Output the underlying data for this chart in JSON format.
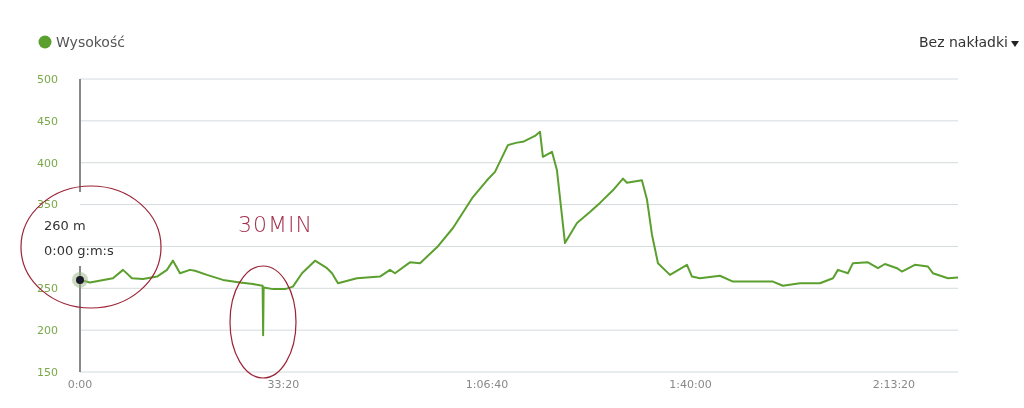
{
  "chart_data": {
    "type": "line",
    "series": [
      {
        "name": "Wysokość",
        "color": "#5ba02e",
        "x": [
          0,
          98,
          324,
          423,
          511,
          619,
          757,
          855,
          914,
          983,
          1081,
          1130,
          1248,
          1405,
          1572,
          1700,
          1795,
          1800,
          1805,
          1897,
          2015,
          2093,
          2182,
          2310,
          2428,
          2477,
          2536,
          2722,
          2948,
          3047,
          3096,
          3243,
          3342,
          3509,
          3666,
          3862,
          4000,
          4079,
          4206,
          4295,
          4354,
          4472,
          4521,
          4550,
          4639,
          4688,
          4767,
          4885,
          5012,
          5111,
          5238,
          5337,
          5376,
          5523,
          5573,
          5622,
          5681,
          5799,
          5966,
          6015,
          6093,
          6290,
          6418,
          6614,
          6811,
          6909,
          7076,
          7273,
          7401,
          7450,
          7548,
          7597,
          7745,
          7843,
          7912,
          8030,
          8078,
          8206,
          8334,
          8383,
          8531,
          8630
        ],
        "values": [
          260,
          257,
          262,
          272,
          262,
          261,
          264,
          272,
          283,
          268,
          272,
          271,
          266,
          260,
          257,
          255,
          253,
          194,
          251,
          249,
          249,
          252,
          268,
          283,
          274,
          268,
          256,
          262,
          264,
          272,
          268,
          281,
          280,
          299,
          322,
          359,
          379,
          389,
          421,
          424,
          425,
          432,
          437,
          407,
          413,
          391,
          304,
          328,
          341,
          352,
          367,
          381,
          376,
          379,
          356,
          314,
          280,
          266,
          278,
          264,
          262,
          265,
          258,
          258,
          258,
          253,
          256,
          256,
          262,
          272,
          268,
          280,
          281,
          274,
          279,
          274,
          270,
          278,
          276,
          268,
          262,
          263
        ]
      }
    ],
    "xlim": [
      0,
      8630
    ],
    "xticks": [
      {
        "value": 0,
        "label": "0:00"
      },
      {
        "value": 2000,
        "label": "33:20"
      },
      {
        "value": 4000,
        "label": "1:06:40"
      },
      {
        "value": 6000,
        "label": "1:40:00"
      },
      {
        "value": 8000,
        "label": "2:13:20"
      }
    ],
    "ylim": [
      150,
      500
    ],
    "yticks": [
      150,
      200,
      250,
      {
        "value": 300,
        "label": null
      },
      350,
      400,
      450,
      500
    ],
    "grid": "y",
    "legend": "top left",
    "ref_lines": [
      {
        "axis": "x",
        "value": 0,
        "color": "#888888"
      }
    ],
    "annotations": [
      "260 m",
      "0:00 g:m:s",
      "30MIN",
      "Bez nakładki"
    ]
  }
}
